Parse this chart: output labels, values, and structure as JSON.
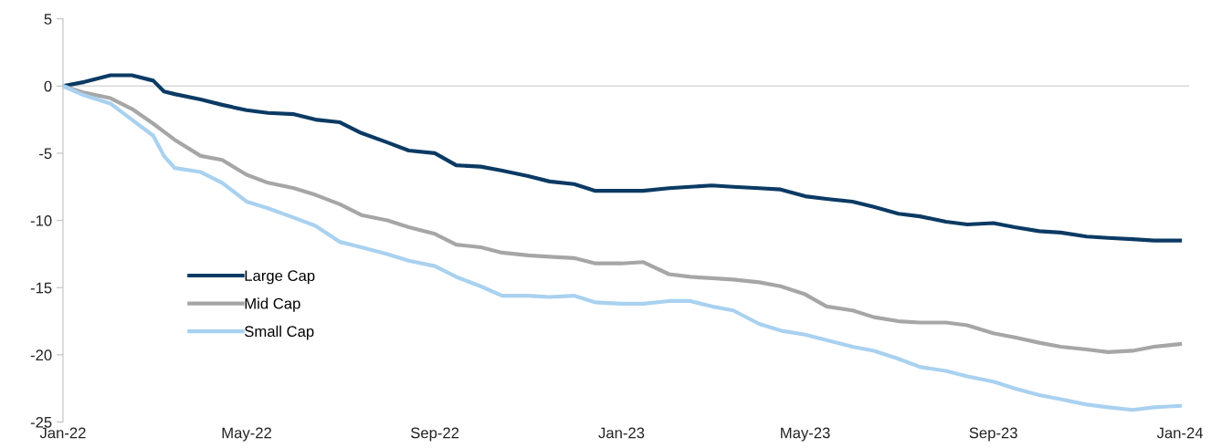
{
  "chart_data": {
    "type": "line",
    "x": [
      "2022-01-01",
      "2022-01-15",
      "2022-02-01",
      "2022-02-15",
      "2022-03-01",
      "2022-03-08",
      "2022-03-15",
      "2022-04-01",
      "2022-04-15",
      "2022-05-01",
      "2022-05-15",
      "2022-06-01",
      "2022-06-15",
      "2022-07-01",
      "2022-07-15",
      "2022-08-01",
      "2022-08-15",
      "2022-09-01",
      "2022-09-15",
      "2022-10-01",
      "2022-10-15",
      "2022-11-01",
      "2022-11-15",
      "2022-12-01",
      "2022-12-15",
      "2023-01-01",
      "2023-01-15",
      "2023-02-01",
      "2023-02-15",
      "2023-03-01",
      "2023-03-15",
      "2023-04-01",
      "2023-04-15",
      "2023-05-01",
      "2023-05-15",
      "2023-06-01",
      "2023-06-15",
      "2023-07-01",
      "2023-07-15",
      "2023-08-01",
      "2023-08-15",
      "2023-09-01",
      "2023-09-15",
      "2023-10-01",
      "2023-10-15",
      "2023-11-01",
      "2023-11-15",
      "2023-12-01",
      "2023-12-15",
      "2024-01-01"
    ],
    "series": [
      {
        "name": "Large Cap",
        "color": "#0b3a64",
        "values": [
          0,
          0.3,
          0.8,
          0.8,
          0.4,
          -0.4,
          -0.6,
          -1.0,
          -1.4,
          -1.8,
          -2.0,
          -2.1,
          -2.5,
          -2.7,
          -3.5,
          -4.2,
          -4.8,
          -5.0,
          -5.9,
          -6.0,
          -6.3,
          -6.7,
          -7.1,
          -7.3,
          -7.8,
          -7.8,
          -7.8,
          -7.6,
          -7.5,
          -7.4,
          -7.5,
          -7.6,
          -7.7,
          -8.2,
          -8.4,
          -8.6,
          -9.0,
          -9.5,
          -9.7,
          -10.1,
          -10.3,
          -10.2,
          -10.5,
          -10.8,
          -10.9,
          -11.2,
          -11.3,
          -11.4,
          -11.5,
          -11.5
        ]
      },
      {
        "name": "Mid Cap",
        "color": "#a6a6a6",
        "values": [
          0,
          -0.5,
          -0.9,
          -1.7,
          -2.8,
          -3.4,
          -4.0,
          -5.2,
          -5.5,
          -6.6,
          -7.2,
          -7.6,
          -8.1,
          -8.8,
          -9.6,
          -10.0,
          -10.5,
          -11.0,
          -11.8,
          -12.0,
          -12.4,
          -12.6,
          -12.7,
          -12.8,
          -13.2,
          -13.2,
          -13.1,
          -14.0,
          -14.2,
          -14.3,
          -14.4,
          -14.6,
          -14.9,
          -15.5,
          -16.4,
          -16.7,
          -17.2,
          -17.5,
          -17.6,
          -17.6,
          -17.8,
          -18.4,
          -18.7,
          -19.1,
          -19.4,
          -19.6,
          -19.8,
          -19.7,
          -19.4,
          -19.2
        ]
      },
      {
        "name": "Small Cap",
        "color": "#a9d1f0",
        "values": [
          0,
          -0.7,
          -1.3,
          -2.5,
          -3.7,
          -5.2,
          -6.1,
          -6.4,
          -7.2,
          -8.6,
          -9.1,
          -9.8,
          -10.4,
          -11.6,
          -12.0,
          -12.5,
          -13.0,
          -13.4,
          -14.2,
          -14.9,
          -15.6,
          -15.6,
          -15.7,
          -15.6,
          -16.1,
          -16.2,
          -16.2,
          -16.0,
          -16.0,
          -16.4,
          -16.7,
          -17.7,
          -18.2,
          -18.5,
          -18.9,
          -19.4,
          -19.7,
          -20.3,
          -20.9,
          -21.2,
          -21.6,
          -22.0,
          -22.5,
          -23.0,
          -23.3,
          -23.7,
          -23.9,
          -24.1,
          -23.9,
          -23.8
        ]
      }
    ],
    "xlim": [
      "2022-01-01",
      "2024-01-07"
    ],
    "xticks": [
      {
        "value": "2022-01-01",
        "label": "Jan-22"
      },
      {
        "value": "2022-05-01",
        "label": "May-22"
      },
      {
        "value": "2022-09-01",
        "label": "Sep-22"
      },
      {
        "value": "2023-01-01",
        "label": "Jan-23"
      },
      {
        "value": "2023-05-01",
        "label": "May-23"
      },
      {
        "value": "2023-09-01",
        "label": "Sep-23"
      },
      {
        "value": "2024-01-01",
        "label": "Jan-24"
      }
    ],
    "ylim": [
      -25,
      5
    ],
    "yticks": [
      5,
      0,
      -5,
      -10,
      -15,
      -20,
      -25
    ],
    "ref_lines": [
      {
        "axis": "y",
        "value": 0,
        "color": "#d9d9d9"
      }
    ],
    "grid": false,
    "legend": "bottom left",
    "marker": "none",
    "line_style": "solid"
  }
}
